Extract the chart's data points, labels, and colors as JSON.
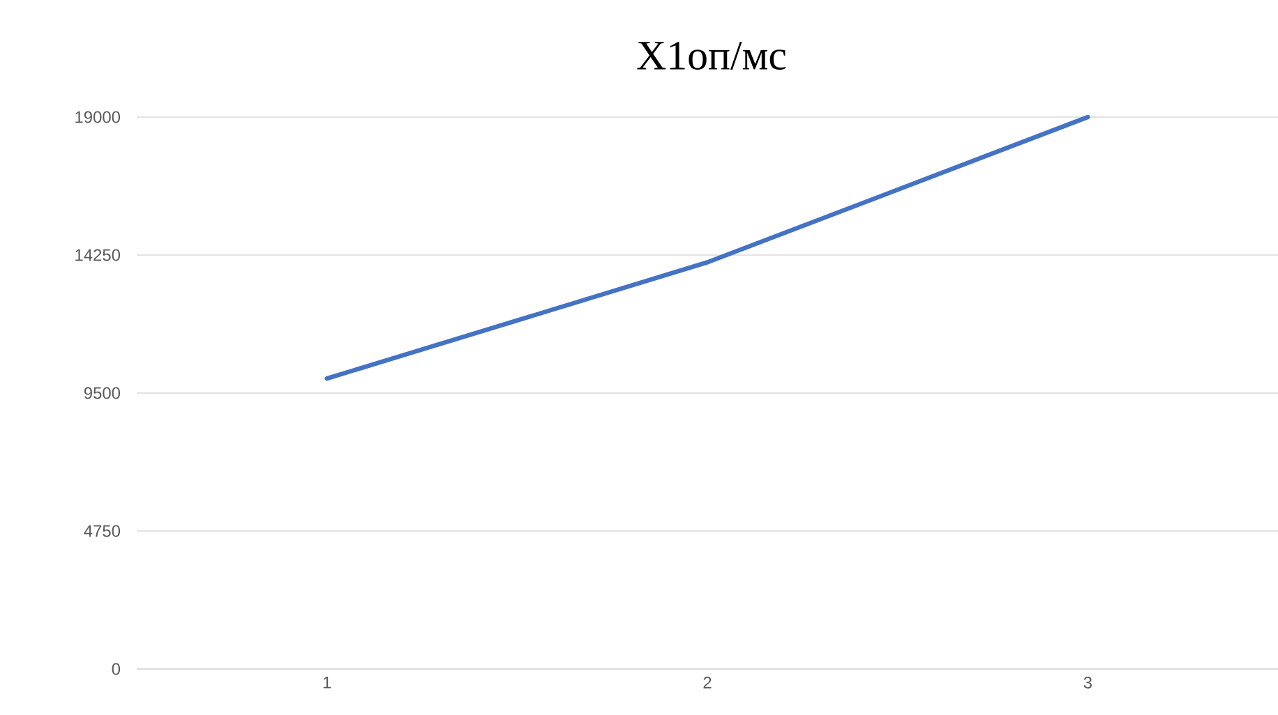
{
  "chart_data": {
    "type": "line",
    "title": "X1оп/мс",
    "categories": [
      "1",
      "2",
      "3"
    ],
    "series": [
      {
        "color": "#4472c4",
        "values": [
          10000,
          14000,
          19000
        ]
      }
    ],
    "ylim": [
      0,
      19000
    ],
    "yticks": [
      0,
      4750,
      9500,
      14250,
      19000
    ],
    "grid": "y",
    "marker": "none",
    "line_style": "solid"
  }
}
